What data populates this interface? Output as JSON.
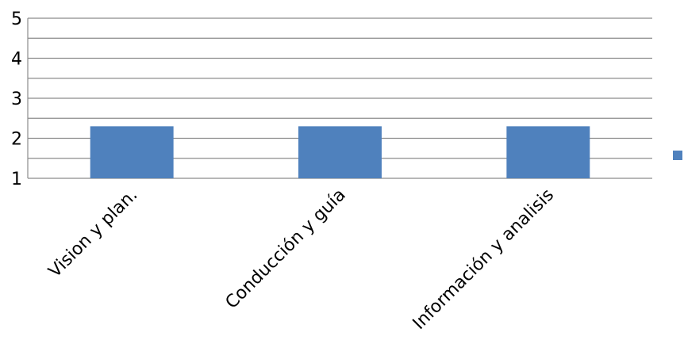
{
  "chart_data": {
    "type": "bar",
    "categories": [
      "Vision y plan.",
      "Conducción y guía",
      "Información y analisis"
    ],
    "series": [
      {
        "values": [
          2.3,
          2.3,
          2.3
        ]
      }
    ],
    "ylim": [
      1,
      5
    ],
    "yticks": [
      "1",
      "2",
      "3",
      "4",
      "5"
    ],
    "minor_grid_step": 0.5,
    "grid": true,
    "legend": "right",
    "colors": {
      "bar": "#4f81bd",
      "grid": "#8c8c8c"
    }
  }
}
